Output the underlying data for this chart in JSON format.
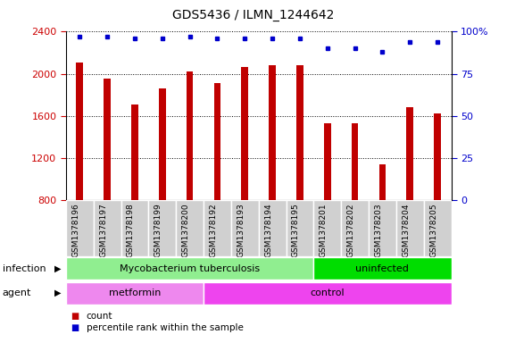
{
  "title": "GDS5436 / ILMN_1244642",
  "samples": [
    "GSM1378196",
    "GSM1378197",
    "GSM1378198",
    "GSM1378199",
    "GSM1378200",
    "GSM1378192",
    "GSM1378193",
    "GSM1378194",
    "GSM1378195",
    "GSM1378201",
    "GSM1378202",
    "GSM1378203",
    "GSM1378204",
    "GSM1378205"
  ],
  "counts": [
    2110,
    1950,
    1710,
    1860,
    2020,
    1910,
    2060,
    2080,
    2080,
    1530,
    1530,
    1140,
    1680,
    1620
  ],
  "percentiles": [
    97,
    97,
    96,
    96,
    97,
    96,
    96,
    96,
    96,
    90,
    90,
    88,
    94,
    94
  ],
  "ylim_left": [
    800,
    2400
  ],
  "ylim_right": [
    0,
    100
  ],
  "yticks_left": [
    800,
    1200,
    1600,
    2000,
    2400
  ],
  "yticks_right": [
    0,
    25,
    50,
    75,
    100
  ],
  "bar_color": "#c00000",
  "dot_color": "#0000cc",
  "infection_groups": [
    {
      "label": "Mycobacterium tuberculosis",
      "start": 0,
      "end": 9,
      "color": "#90ee90"
    },
    {
      "label": "uninfected",
      "start": 9,
      "end": 14,
      "color": "#00dd00"
    }
  ],
  "agent_groups": [
    {
      "label": "metformin",
      "start": 0,
      "end": 5,
      "color": "#ee88ee"
    },
    {
      "label": "control",
      "start": 5,
      "end": 14,
      "color": "#ee44ee"
    }
  ],
  "legend_items": [
    {
      "label": "count",
      "color": "#c00000"
    },
    {
      "label": "percentile rank within the sample",
      "color": "#0000cc"
    }
  ],
  "left_axis_color": "#cc0000",
  "right_axis_color": "#0000cc",
  "plot_bg": "#ffffff",
  "infection_label": "infection",
  "agent_label": "agent",
  "tick_label_bg": "#d0d0d0"
}
